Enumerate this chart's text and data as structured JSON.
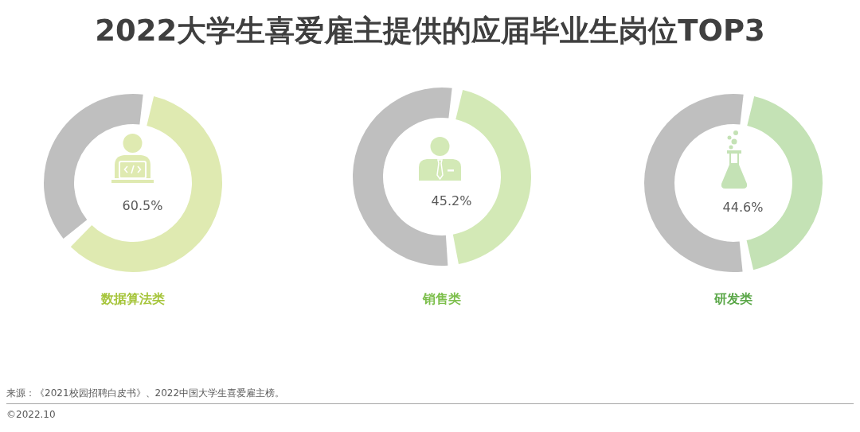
{
  "chart_data": [
    {
      "type": "other",
      "title": "2022大学生喜爱雇主提供的应届毕业生岗位TOP3",
      "annotations": [
        "来源：《2021校园招聘白皮书》、2022中国大学生喜爱雇主榜。",
        "©2022.10"
      ]
    },
    {
      "type": "donut",
      "title": "数据算法类",
      "categories": [
        null,
        null
      ],
      "values": [
        60.5,
        39.5
      ],
      "colors": [
        "#dfeab1",
        "#bfbfbf"
      ],
      "value_labels": [
        "60.5%",
        null
      ]
    },
    {
      "type": "donut",
      "title": "销售类",
      "categories": [
        null,
        null
      ],
      "values": [
        45.2,
        54.8
      ],
      "colors": [
        "#d3e9b6",
        "#bfbfbf"
      ],
      "value_labels": [
        "45.2%",
        null
      ]
    },
    {
      "type": "donut",
      "title": "研发类",
      "categories": [
        null,
        null
      ],
      "values": [
        44.6,
        55.4
      ],
      "colors": [
        "#c4e2b5",
        "#bfbfbf"
      ],
      "value_labels": [
        "44.6%",
        null
      ]
    }
  ]
}
